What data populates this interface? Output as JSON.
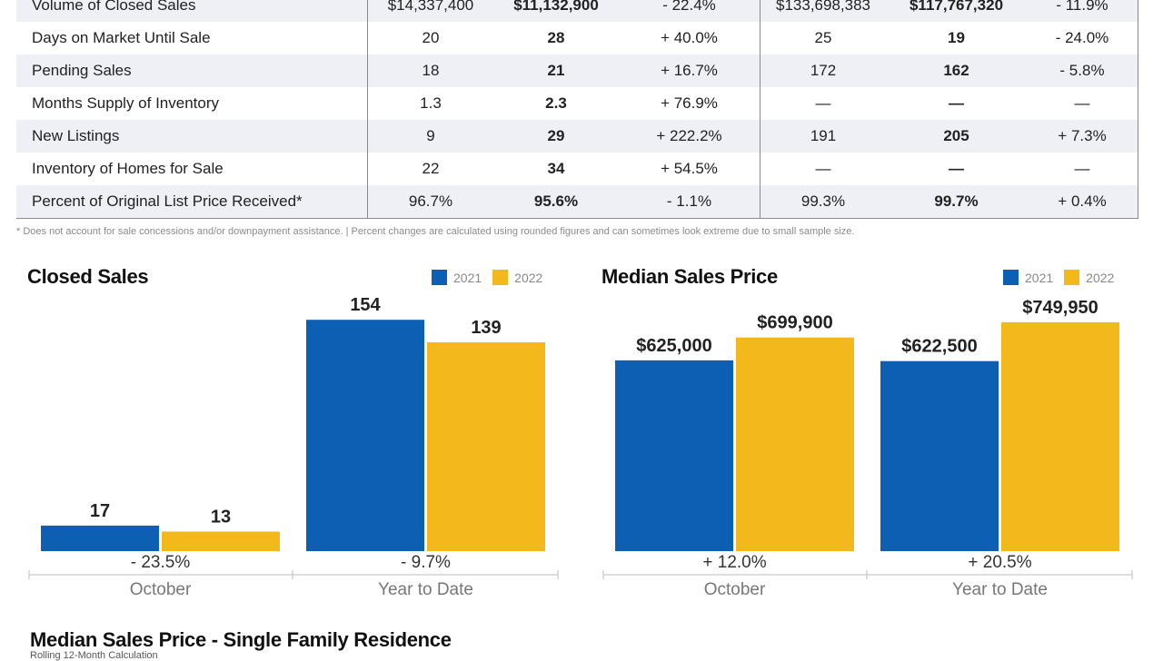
{
  "table": {
    "rows": [
      {
        "metric": "Volume of Closed Sales",
        "c1": "$14,337,400",
        "c2": "$11,132,900",
        "c3": "- 22.4%",
        "c4": "$133,698,383",
        "c5": "$117,767,320",
        "c6": "- 11.9%"
      },
      {
        "metric": "Days on Market Until Sale",
        "c1": "20",
        "c2": "28",
        "c3": "+ 40.0%",
        "c4": "25",
        "c5": "19",
        "c6": "- 24.0%"
      },
      {
        "metric": "Pending Sales",
        "c1": "18",
        "c2": "21",
        "c3": "+ 16.7%",
        "c4": "172",
        "c5": "162",
        "c6": "- 5.8%"
      },
      {
        "metric": "Months Supply of Inventory",
        "c1": "1.3",
        "c2": "2.3",
        "c3": "+ 76.9%",
        "c4": "—",
        "c5": "—",
        "c6": "—"
      },
      {
        "metric": "New Listings",
        "c1": "9",
        "c2": "29",
        "c3": "+ 222.2%",
        "c4": "191",
        "c5": "205",
        "c6": "+ 7.3%"
      },
      {
        "metric": "Inventory of Homes for Sale",
        "c1": "22",
        "c2": "34",
        "c3": "+ 54.5%",
        "c4": "—",
        "c5": "—",
        "c6": "—"
      },
      {
        "metric": "Percent of Original List Price Received*",
        "c1": "96.7%",
        "c2": "95.6%",
        "c3": "- 1.1%",
        "c4": "99.3%",
        "c5": "99.7%",
        "c6": "+ 0.4%"
      }
    ]
  },
  "footnote": "* Does not account for sale concessions and/or downpayment assistance.  |  Percent changes are calculated using rounded figures and can sometimes look extreme due to small sample size.",
  "colors": {
    "y2021": "#0d5fb3",
    "y2022": "#f2b81c"
  },
  "chart_data": [
    {
      "type": "bar",
      "title": "Closed Sales",
      "legend": [
        "2021",
        "2022"
      ],
      "categories": [
        "October",
        "Year to Date"
      ],
      "series": [
        {
          "name": "2021",
          "values": [
            17,
            154
          ],
          "labels": [
            "17",
            "154"
          ]
        },
        {
          "name": "2022",
          "values": [
            13,
            139
          ],
          "labels": [
            "13",
            "139"
          ]
        }
      ],
      "changes": [
        "- 23.5%",
        "- 9.7%"
      ],
      "ylim": [
        0,
        165
      ]
    },
    {
      "type": "bar",
      "title": "Median Sales Price",
      "legend": [
        "2021",
        "2022"
      ],
      "categories": [
        "October",
        "Year to Date"
      ],
      "series": [
        {
          "name": "2021",
          "values": [
            625000,
            622500
          ],
          "labels": [
            "$625,000",
            "$622,500"
          ]
        },
        {
          "name": "2022",
          "values": [
            699900,
            749950
          ],
          "labels": [
            "$699,900",
            "$749,950"
          ]
        }
      ],
      "changes": [
        "+ 12.0%",
        "+ 20.5%"
      ],
      "ylim": [
        0,
        812000
      ]
    }
  ],
  "bottom": {
    "title": "Median Sales Price - Single Family Residence",
    "subtitle": "Rolling 12-Month Calculation"
  }
}
